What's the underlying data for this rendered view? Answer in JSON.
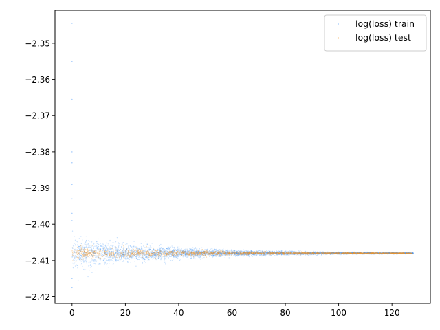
{
  "chart_data": {
    "type": "scatter",
    "title": "",
    "xlabel": "",
    "ylabel": "",
    "xlim": [
      -6.4,
      134.4
    ],
    "ylim": [
      -2.4218,
      -2.3409
    ],
    "xticks": [
      {
        "value": 0,
        "label": "0"
      },
      {
        "value": 20,
        "label": "20"
      },
      {
        "value": 40,
        "label": "40"
      },
      {
        "value": 60,
        "label": "60"
      },
      {
        "value": 80,
        "label": "80"
      },
      {
        "value": 100,
        "label": "100"
      },
      {
        "value": 120,
        "label": "120"
      }
    ],
    "yticks": [
      {
        "value": -2.35,
        "label": "−2.35"
      },
      {
        "value": -2.36,
        "label": "−2.36"
      },
      {
        "value": -2.37,
        "label": "−2.37"
      },
      {
        "value": -2.38,
        "label": "−2.38"
      },
      {
        "value": -2.39,
        "label": "−2.39"
      },
      {
        "value": -2.4,
        "label": "−2.40"
      },
      {
        "value": -2.41,
        "label": "−2.41"
      },
      {
        "value": -2.42,
        "label": "−2.42"
      }
    ],
    "grid": false,
    "legend": {
      "placement": "top-right"
    },
    "series": [
      {
        "name": "log(loss) train",
        "color": "#1f77b4",
        "marker_color": "#3a8ef6",
        "x_range": [
          0,
          128
        ],
        "center": -2.408,
        "spread": [
          {
            "x": 0,
            "halfwidth": 0.0045
          },
          {
            "x": 20,
            "halfwidth": 0.0025
          },
          {
            "x": 40,
            "halfwidth": 0.0015
          },
          {
            "x": 60,
            "halfwidth": 0.0008
          },
          {
            "x": 80,
            "halfwidth": 0.0005
          },
          {
            "x": 100,
            "halfwidth": 0.0003
          },
          {
            "x": 128,
            "halfwidth": 0.0002
          }
        ],
        "outliers": [
          {
            "x": 0,
            "y": -2.3445
          },
          {
            "x": 0,
            "y": -2.355
          },
          {
            "x": 0,
            "y": -2.3655
          },
          {
            "x": 0,
            "y": -2.38
          },
          {
            "x": 0,
            "y": -2.383
          },
          {
            "x": 0,
            "y": -2.389
          },
          {
            "x": 0,
            "y": -2.393
          },
          {
            "x": 0,
            "y": -2.397
          },
          {
            "x": 0,
            "y": -2.399
          },
          {
            "x": 0,
            "y": -2.415
          },
          {
            "x": 0,
            "y": -2.4175
          }
        ]
      },
      {
        "name": "log(loss) test",
        "color": "#ff7f0e",
        "marker_color": "#f0962a",
        "x_range": [
          0,
          128
        ],
        "center": -2.408,
        "spread": [
          {
            "x": 0,
            "halfwidth": 0.0018
          },
          {
            "x": 20,
            "halfwidth": 0.0012
          },
          {
            "x": 40,
            "halfwidth": 0.0008
          },
          {
            "x": 60,
            "halfwidth": 0.0005
          },
          {
            "x": 100,
            "halfwidth": 0.0002
          },
          {
            "x": 128,
            "halfwidth": 0.0001
          }
        ],
        "outliers": []
      }
    ]
  }
}
